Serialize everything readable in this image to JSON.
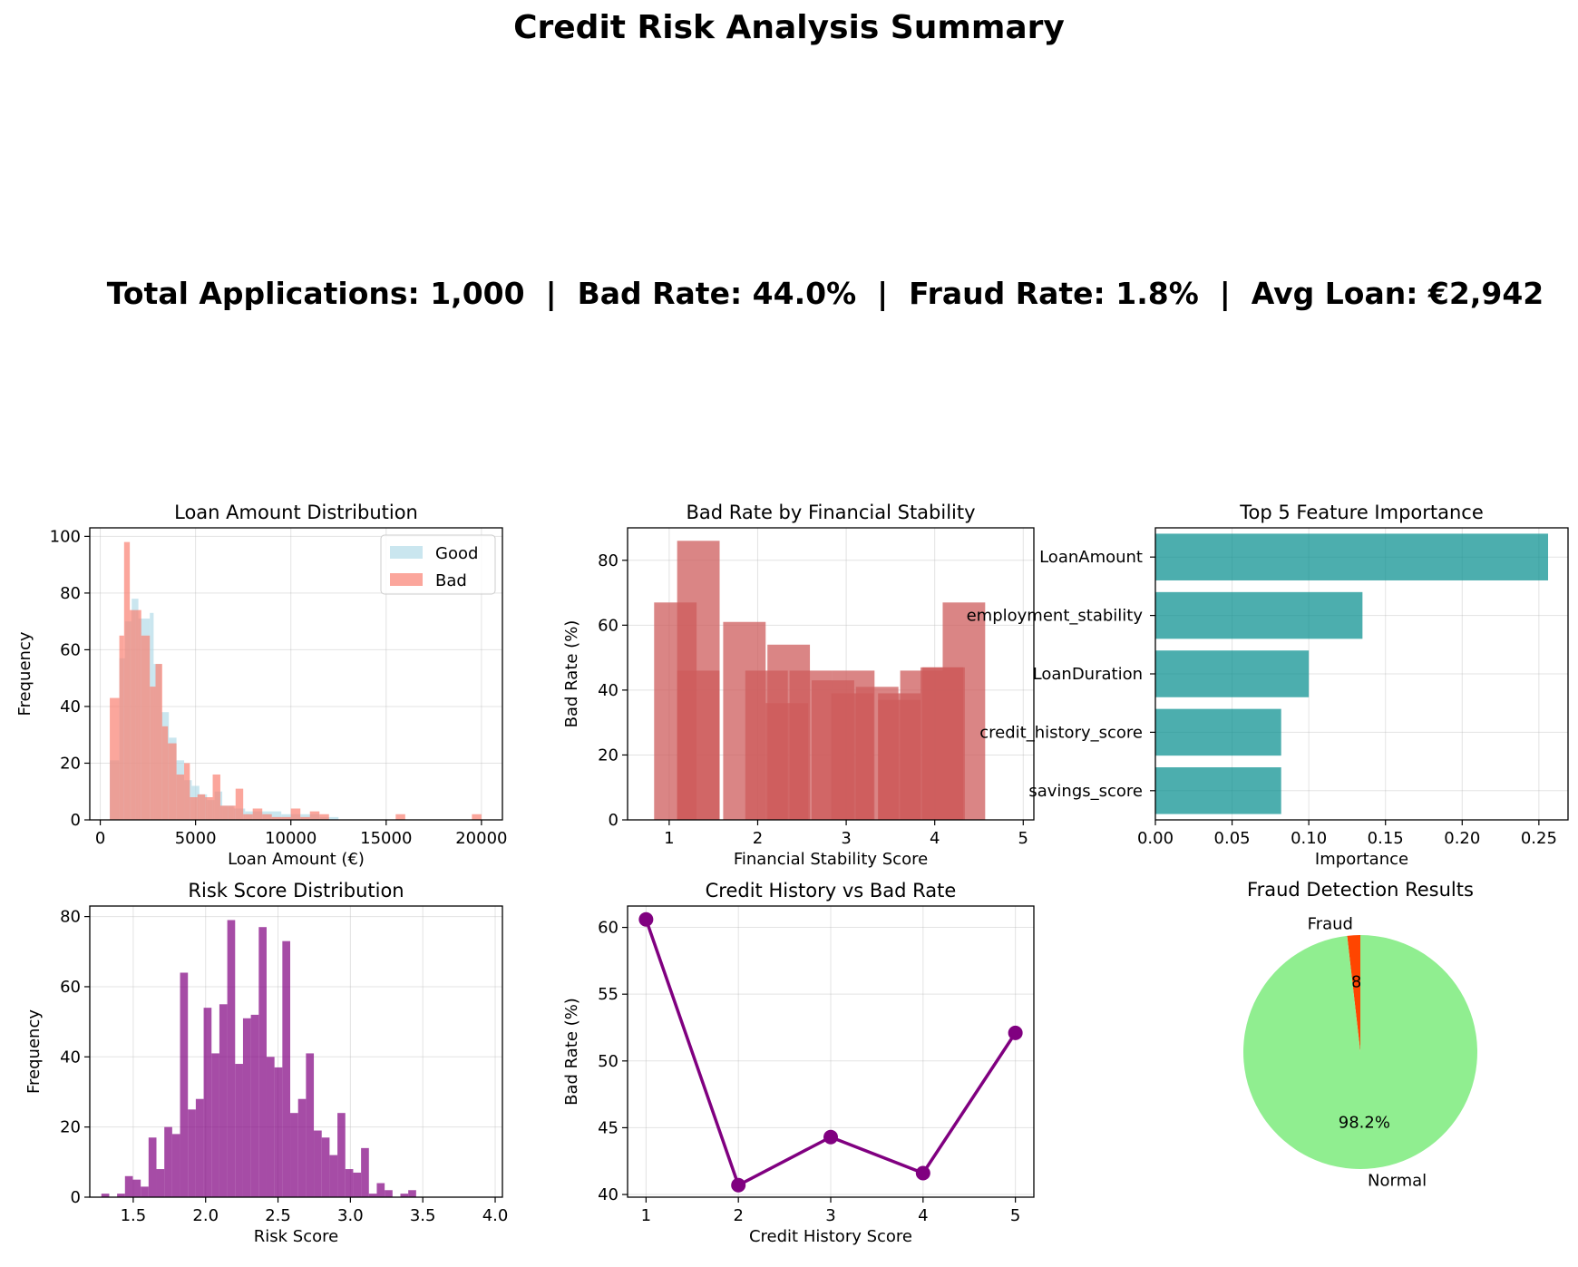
{
  "title": "Credit Risk Analysis Summary",
  "summary": "Total Applications: 1,000  |  Bad Rate: 44.0%  |  Fraud Rate: 1.8%  |  Avg Loan: €2,942",
  "chart_data": [
    {
      "id": "loan",
      "type": "histogram",
      "title": "Loan Amount Distribution",
      "xlabel": "Loan Amount (€)",
      "ylabel": "Frequency",
      "xlim": [
        -550,
        21100
      ],
      "ylim": [
        0,
        103
      ],
      "xticks": [
        0,
        5000,
        10000,
        15000,
        20000
      ],
      "yticks": [
        0,
        20,
        40,
        60,
        80,
        100
      ],
      "grid": true,
      "legend": "top-right",
      "series": [
        {
          "name": "Good",
          "color": "#add8e6",
          "opacity": 0.65,
          "bins": [
            [
              500,
              1000,
              21
            ],
            [
              1000,
              1300,
              57
            ],
            [
              1300,
              1650,
              70
            ],
            [
              1650,
              2000,
              78
            ],
            [
              2000,
              2600,
              71
            ],
            [
              2600,
              2800,
              73
            ],
            [
              2800,
              3200,
              55
            ],
            [
              3200,
              3600,
              38
            ],
            [
              3600,
              4000,
              29
            ],
            [
              4000,
              4400,
              21
            ],
            [
              4400,
              4800,
              14
            ],
            [
              4800,
              5200,
              12
            ],
            [
              5200,
              5600,
              9
            ],
            [
              5600,
              6000,
              7
            ],
            [
              6000,
              6400,
              10
            ],
            [
              6400,
              7000,
              5
            ],
            [
              7000,
              7600,
              4
            ],
            [
              7600,
              8300,
              3
            ],
            [
              8300,
              9500,
              3
            ],
            [
              9500,
              10500,
              2
            ],
            [
              10500,
              11500,
              2
            ],
            [
              11500,
              12500,
              1
            ]
          ]
        },
        {
          "name": "Bad",
          "color": "#fa8072",
          "opacity": 0.7,
          "bins": [
            [
              500,
              1000,
              43
            ],
            [
              1000,
              1250,
              65
            ],
            [
              1250,
              1550,
              98
            ],
            [
              1550,
              1850,
              74
            ],
            [
              1850,
              2150,
              74
            ],
            [
              2150,
              2600,
              65
            ],
            [
              2600,
              2900,
              47
            ],
            [
              2900,
              3250,
              55
            ],
            [
              3250,
              3550,
              33
            ],
            [
              3550,
              4000,
              27
            ],
            [
              4000,
              4400,
              16
            ],
            [
              4400,
              4700,
              20
            ],
            [
              4700,
              5100,
              8
            ],
            [
              5100,
              5500,
              9
            ],
            [
              5500,
              5900,
              8
            ],
            [
              5900,
              6300,
              16
            ],
            [
              6300,
              6700,
              5
            ],
            [
              6700,
              7100,
              5
            ],
            [
              7100,
              7500,
              11
            ],
            [
              7500,
              8000,
              2
            ],
            [
              8000,
              8500,
              4
            ],
            [
              8500,
              9000,
              2
            ],
            [
              9000,
              10000,
              1
            ],
            [
              10000,
              10500,
              4
            ],
            [
              10500,
              11000,
              1
            ],
            [
              11000,
              11500,
              3
            ],
            [
              11500,
              12000,
              2
            ],
            [
              15500,
              16000,
              2
            ],
            [
              19500,
              20000,
              2
            ]
          ]
        }
      ]
    },
    {
      "id": "stab",
      "type": "bar",
      "title": "Bad Rate by Financial Stability",
      "xlabel": "Financial Stability Score",
      "ylabel": "Bad Rate (%)",
      "xlim": [
        0.53,
        5.12
      ],
      "ylim": [
        0,
        90
      ],
      "xticks": [
        1,
        2,
        3,
        4,
        5
      ],
      "yticks": [
        0,
        20,
        40,
        60,
        80
      ],
      "grid": true,
      "color": "#cd5c5c",
      "opacity": 0.75,
      "bars": [
        {
          "x": 1.33,
          "value": 46
        },
        {
          "x": 2.33,
          "value": 36
        },
        {
          "x": 3.07,
          "value": 39
        },
        {
          "x": 3.6,
          "value": 37
        },
        {
          "x": 1.07,
          "value": 67
        },
        {
          "x": 1.33,
          "value": 86
        },
        {
          "x": 1.85,
          "value": 61
        },
        {
          "x": 2.1,
          "value": 46
        },
        {
          "x": 2.35,
          "value": 54
        },
        {
          "x": 2.6,
          "value": 46
        },
        {
          "x": 2.85,
          "value": 43
        },
        {
          "x": 3.08,
          "value": 46
        },
        {
          "x": 3.35,
          "value": 41
        },
        {
          "x": 3.6,
          "value": 39
        },
        {
          "x": 3.85,
          "value": 46
        },
        {
          "x": 4.1,
          "value": 47
        },
        {
          "x": 4.33,
          "value": 67
        },
        {
          "x": 4.08,
          "value": 47
        }
      ],
      "bar_width": 0.48
    },
    {
      "id": "feat",
      "type": "barh",
      "title": "Top 5 Feature Importance",
      "xlabel": "Importance",
      "xlim": [
        0,
        0.269
      ],
      "xticks": [
        0.0,
        0.05,
        0.1,
        0.15,
        0.2,
        0.25
      ],
      "xticklabels": [
        "0.00",
        "0.05",
        "0.10",
        "0.15",
        "0.20",
        "0.25"
      ],
      "grid": true,
      "color": "#008b8b",
      "opacity": 0.7,
      "categories": [
        "LoanAmount",
        "employment_stability",
        "LoanDuration",
        "credit_history_score",
        "savings_score"
      ],
      "values": [
        0.256,
        0.135,
        0.1,
        0.082,
        0.082
      ]
    },
    {
      "id": "risk",
      "type": "histogram",
      "title": "Risk Score Distribution",
      "xlabel": "Risk Score",
      "ylabel": "Frequency",
      "xlim": [
        1.2,
        4.05
      ],
      "ylim": [
        0,
        83
      ],
      "xticks": [
        1.5,
        2.0,
        2.5,
        3.0,
        3.5,
        4.0
      ],
      "xticklabels": [
        "1.5",
        "2.0",
        "2.5",
        "3.0",
        "3.5",
        "4.0"
      ],
      "yticks": [
        0,
        20,
        40,
        60,
        80
      ],
      "grid": true,
      "color": "#800080",
      "opacity": 0.7,
      "bin_start": 1.28,
      "bin_width": 0.05435,
      "counts": [
        1,
        0,
        1,
        6,
        5,
        3,
        17,
        8,
        20,
        18,
        64,
        25,
        28,
        54,
        41,
        55,
        79,
        38,
        51,
        52,
        77,
        40,
        37,
        73,
        24,
        28,
        41,
        19,
        17,
        12,
        24,
        8,
        7,
        14,
        1,
        4,
        2,
        0,
        1,
        2
      ]
    },
    {
      "id": "hist",
      "type": "line",
      "title": "Credit History vs Bad Rate",
      "xlabel": "Credit History Score",
      "ylabel": "Bad Rate (%)",
      "xlim": [
        0.8,
        5.2
      ],
      "ylim": [
        39.8,
        61.6
      ],
      "xticks": [
        1,
        2,
        3,
        4,
        5
      ],
      "yticks": [
        40,
        45,
        50,
        55,
        60
      ],
      "grid": true,
      "color": "#800080",
      "x": [
        1,
        2,
        3,
        4,
        5
      ],
      "y": [
        60.6,
        40.7,
        44.3,
        41.6,
        52.1
      ]
    },
    {
      "id": "pie",
      "type": "pie",
      "title": "Fraud Detection Results",
      "labels": [
        "Fraud",
        "Normal"
      ],
      "values": [
        1.8,
        98.2
      ],
      "autopct": [
        "1.8%",
        "98.2%"
      ],
      "colors": [
        "#ff4500",
        "#90ee90"
      ]
    }
  ]
}
